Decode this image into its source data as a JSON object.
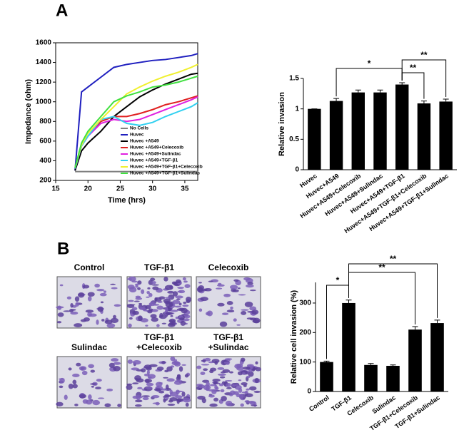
{
  "panels": [
    "A",
    "B"
  ],
  "micrographs": [
    [
      "Control"
    ],
    [
      "TGF-β1"
    ],
    [
      "Celecoxib"
    ],
    [
      "Sulindac"
    ],
    [
      "TGF-β1",
      "+Celecoxib"
    ],
    [
      "TGF-β1",
      "+Sulindac"
    ]
  ],
  "chart_data": [
    {
      "type": "line",
      "xlabel": "Time (hrs)",
      "ylabel": "Impedance (ohm)",
      "x": [
        18,
        19,
        20,
        22,
        24,
        26,
        28,
        30,
        32,
        34,
        36,
        37
      ],
      "xlim": [
        15,
        37
      ],
      "xticks": [
        15,
        20,
        25,
        30,
        35
      ],
      "ylim": [
        200,
        1600
      ],
      "yticks": [
        200,
        400,
        600,
        800,
        1000,
        1200,
        1400,
        1600
      ],
      "legend": "lower right",
      "series": [
        {
          "name": "No Cells",
          "color": "#808080",
          "values": [
            290,
            290,
            290,
            290,
            290,
            290,
            290,
            290,
            290,
            290,
            290,
            290
          ]
        },
        {
          "name": "Huvec",
          "color": "#1f1fbf",
          "values": [
            300,
            1100,
            1150,
            1250,
            1350,
            1380,
            1400,
            1420,
            1430,
            1450,
            1470,
            1490
          ]
        },
        {
          "name": "Huvec +A549",
          "color": "#000000",
          "values": [
            300,
            500,
            580,
            700,
            850,
            950,
            1050,
            1120,
            1180,
            1230,
            1280,
            1290
          ]
        },
        {
          "name": "Huvec +A549+Celecoxib",
          "color": "#e02020",
          "values": [
            320,
            550,
            650,
            800,
            850,
            850,
            880,
            920,
            970,
            1000,
            1040,
            1060
          ]
        },
        {
          "name": "Huvec +A549+Sulindac",
          "color": "#e020e0",
          "values": [
            320,
            550,
            650,
            780,
            820,
            800,
            820,
            870,
            920,
            970,
            1020,
            1050
          ]
        },
        {
          "name": "Huvec +A549+TGF-β1",
          "color": "#30d0f0",
          "values": [
            320,
            550,
            650,
            820,
            850,
            780,
            760,
            790,
            850,
            900,
            950,
            990
          ]
        },
        {
          "name": "Huvec +A549+TGF-β1+Celecoxib",
          "color": "#f0f030",
          "values": [
            330,
            560,
            680,
            820,
            950,
            1080,
            1150,
            1210,
            1260,
            1300,
            1350,
            1380
          ]
        },
        {
          "name": "Huvec +A549+TGF-β1+Sulindac",
          "color": "#40e040",
          "values": [
            330,
            580,
            700,
            850,
            1000,
            1060,
            1100,
            1150,
            1170,
            1200,
            1240,
            1260
          ]
        }
      ]
    },
    {
      "type": "bar",
      "ylabel": "Relative invasion",
      "color": "#000000",
      "categories": [
        "Huvec",
        "Huvec+A549",
        "Huvec+A549+Celecoxib",
        "Huvec+A549+Sulindac",
        "Huvec+A549+TGF-β1",
        "Huvec+A549+TGF-β1+Celecoxib",
        "Huvec+A549+TGF-β1+Sulindac"
      ],
      "values": [
        1.0,
        1.13,
        1.27,
        1.27,
        1.4,
        1.09,
        1.12
      ],
      "errors": [
        0.0,
        0.04,
        0.04,
        0.04,
        0.03,
        0.04,
        0.04
      ],
      "ylim": [
        0,
        1.5
      ],
      "yticks": [
        0,
        0.5,
        1,
        1.5
      ],
      "annotations": [
        {
          "text": "*",
          "between": [
            1,
            4
          ]
        },
        {
          "text": "**",
          "between": [
            4,
            5
          ]
        },
        {
          "text": "**",
          "between": [
            4,
            6
          ]
        }
      ]
    },
    {
      "type": "bar",
      "ylabel": "Relative cell invasion (%)",
      "color": "#000000",
      "categories": [
        "Control",
        "TGF-β1",
        "Celecoxib",
        "Sulindac",
        "TGF-β1+Celecoxib",
        "TGF-β1+Sulindac"
      ],
      "values": [
        100,
        300,
        90,
        87,
        210,
        232
      ],
      "errors": [
        3,
        10,
        5,
        3,
        10,
        10
      ],
      "ylim": [
        0,
        370
      ],
      "yticks": [
        0,
        100,
        200,
        300
      ],
      "annotations": [
        {
          "text": "*",
          "between": [
            0,
            1
          ]
        },
        {
          "text": "**",
          "between": [
            1,
            4
          ]
        },
        {
          "text": "**",
          "between": [
            1,
            5
          ]
        }
      ]
    }
  ]
}
